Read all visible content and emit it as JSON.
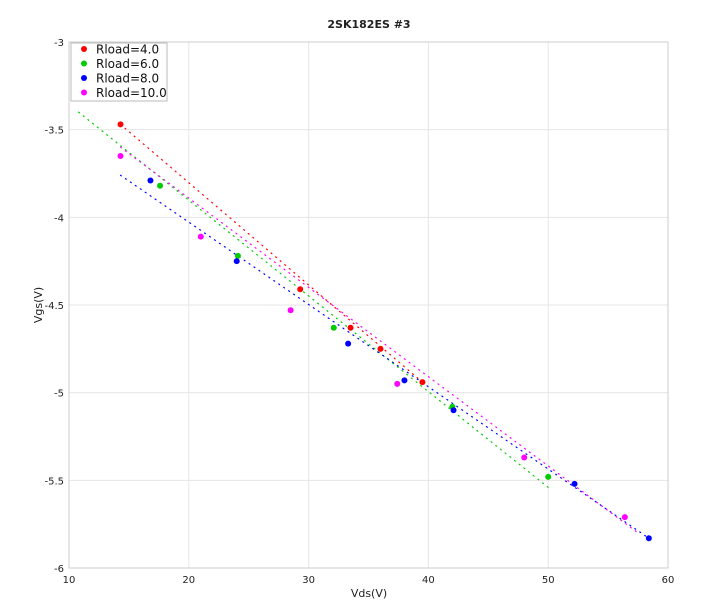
{
  "chart_data": {
    "type": "scatter",
    "title": "2SK182ES #3",
    "xlabel": "Vds(V)",
    "ylabel": "Vgs(V)",
    "xlim": [
      10,
      60
    ],
    "ylim": [
      -6,
      -3
    ],
    "xticks": [
      "10",
      "20",
      "30",
      "40",
      "50",
      "60"
    ],
    "yticks": [
      "-3",
      "-3.5",
      "-4",
      "-4.5",
      "-5",
      "-5.5",
      "-6"
    ],
    "grid": true,
    "legend_position": "top-left",
    "series": [
      {
        "name": "Rload=4.0",
        "color": "#ff0000",
        "points": [
          [
            14.3,
            -3.47
          ],
          [
            29.3,
            -4.41
          ],
          [
            33.5,
            -4.63
          ],
          [
            36.0,
            -4.75
          ],
          [
            39.5,
            -4.94
          ]
        ],
        "fit": [
          [
            14.3,
            -3.47
          ],
          [
            39.5,
            -4.94
          ]
        ]
      },
      {
        "name": "Rload=6.0",
        "color": "#00cc00",
        "points": [
          [
            17.6,
            -3.82
          ],
          [
            24.1,
            -4.22
          ],
          [
            32.1,
            -4.63
          ],
          [
            42.0,
            -5.08
          ],
          [
            50.0,
            -5.48
          ]
        ],
        "fit": [
          [
            10.8,
            -3.4
          ],
          [
            50.0,
            -5.54
          ]
        ]
      },
      {
        "name": "Rload=8.0",
        "color": "#0000ff",
        "points": [
          [
            16.8,
            -3.79
          ],
          [
            24.0,
            -4.25
          ],
          [
            33.3,
            -4.72
          ],
          [
            38.0,
            -4.93
          ],
          [
            42.1,
            -5.1
          ],
          [
            52.2,
            -5.52
          ],
          [
            58.4,
            -5.83
          ]
        ],
        "fit": [
          [
            14.3,
            -3.76
          ],
          [
            58.4,
            -5.83
          ]
        ]
      },
      {
        "name": "Rload=10.0",
        "color": "#ff00ff",
        "points": [
          [
            14.3,
            -3.65
          ],
          [
            21.0,
            -4.11
          ],
          [
            28.5,
            -4.53
          ],
          [
            37.4,
            -4.95
          ],
          [
            48.0,
            -5.37
          ],
          [
            56.4,
            -5.71
          ]
        ],
        "fit": [
          [
            14.3,
            -3.6
          ],
          [
            57.5,
            -5.8
          ]
        ]
      }
    ]
  }
}
